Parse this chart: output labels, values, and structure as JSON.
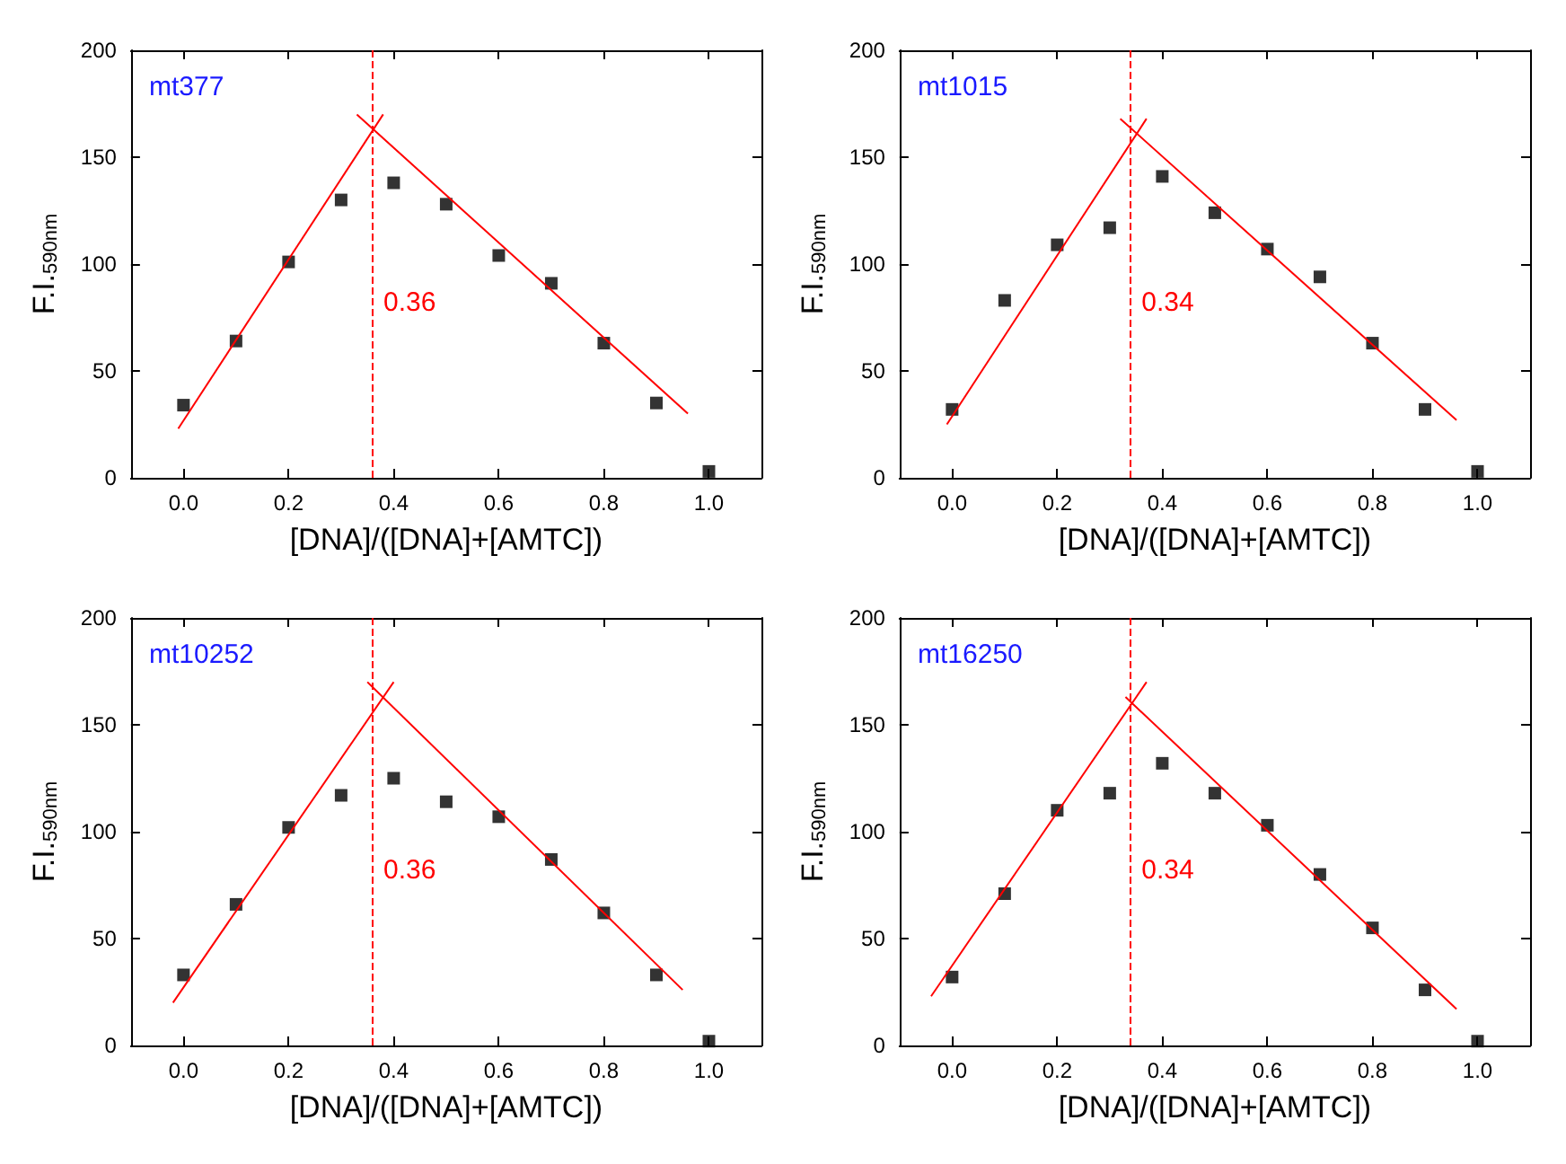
{
  "chart_data": [
    {
      "type": "scatter",
      "title": "mt377",
      "xlabel": "[DNA]/([DNA]+[AMTC])",
      "ylabel": "F.I.$_{590nm}$",
      "marker": "square",
      "grid": false,
      "xlim": [
        -0.1,
        1.1
      ],
      "xticks": [
        {
          "value": 0,
          "label": "0.0"
        },
        {
          "value": 0.2,
          "label": "0.2"
        },
        {
          "value": 0.4,
          "label": "0.4"
        },
        {
          "value": 0.6,
          "label": "0.6"
        },
        {
          "value": 0.8,
          "label": "0.8"
        },
        {
          "value": 1,
          "label": "1.0"
        }
      ],
      "ylim": [
        0,
        200
      ],
      "yticks": [
        0,
        50,
        100,
        150,
        200
      ],
      "x": [
        0,
        0.1,
        0.2,
        0.3,
        0.4,
        0.5,
        0.6,
        0.7,
        0.8,
        0.9,
        1.0
      ],
      "series": [
        {
          "color": "#000000",
          "values": [
            34,
            64,
            101,
            130,
            138,
            128,
            104,
            91,
            63,
            35,
            3
          ]
        },
        {
          "type": "line",
          "color": "#ff0000",
          "marker": "none",
          "x": [
            -0.01,
            0.38
          ],
          "values": [
            23,
            170
          ]
        },
        {
          "type": "line",
          "color": "#ff0000",
          "marker": "none",
          "x": [
            0.33,
            0.96
          ],
          "values": [
            170,
            30
          ]
        }
      ],
      "ref_lines": [
        {
          "axis": "x",
          "value": 0.36,
          "label": "0.36",
          "color": "#ff0000",
          "line_style": "dashed"
        }
      ]
    },
    {
      "type": "scatter",
      "title": "mt1015",
      "xlabel": "[DNA]/([DNA]+[AMTC])",
      "ylabel": "F.I.$_{590nm}$",
      "marker": "square",
      "grid": false,
      "xlim": [
        -0.1,
        1.1
      ],
      "xticks": [
        {
          "value": 0,
          "label": "0.0"
        },
        {
          "value": 0.2,
          "label": "0.2"
        },
        {
          "value": 0.4,
          "label": "0.4"
        },
        {
          "value": 0.6,
          "label": "0.6"
        },
        {
          "value": 0.8,
          "label": "0.8"
        },
        {
          "value": 1,
          "label": "1.0"
        }
      ],
      "ylim": [
        0,
        200
      ],
      "yticks": [
        0,
        50,
        100,
        150,
        200
      ],
      "x": [
        0,
        0.1,
        0.2,
        0.3,
        0.4,
        0.5,
        0.6,
        0.7,
        0.8,
        0.9,
        1.0
      ],
      "series": [
        {
          "color": "#000000",
          "values": [
            32,
            83,
            109,
            117,
            141,
            124,
            107,
            94,
            63,
            32,
            3
          ]
        },
        {
          "type": "line",
          "color": "#ff0000",
          "marker": "none",
          "x": [
            -0.01,
            0.37
          ],
          "values": [
            25,
            168
          ]
        },
        {
          "type": "line",
          "color": "#ff0000",
          "marker": "none",
          "x": [
            0.32,
            0.96
          ],
          "values": [
            168,
            27
          ]
        }
      ],
      "ref_lines": [
        {
          "axis": "x",
          "value": 0.34,
          "label": "0.34",
          "color": "#ff0000",
          "line_style": "dashed"
        }
      ]
    },
    {
      "type": "scatter",
      "title": "mt10252",
      "xlabel": "[DNA]/([DNA]+[AMTC])",
      "ylabel": "F.I.$_{590nm}$",
      "marker": "square",
      "grid": false,
      "xlim": [
        -0.1,
        1.1
      ],
      "xticks": [
        {
          "value": 0,
          "label": "0.0"
        },
        {
          "value": 0.2,
          "label": "0.2"
        },
        {
          "value": 0.4,
          "label": "0.4"
        },
        {
          "value": 0.6,
          "label": "0.6"
        },
        {
          "value": 0.8,
          "label": "0.8"
        },
        {
          "value": 1,
          "label": "1.0"
        }
      ],
      "ylim": [
        0,
        200
      ],
      "yticks": [
        0,
        50,
        100,
        150,
        200
      ],
      "x": [
        0,
        0.1,
        0.2,
        0.3,
        0.4,
        0.5,
        0.6,
        0.7,
        0.8,
        0.9,
        1.0
      ],
      "series": [
        {
          "color": "#000000",
          "values": [
            33,
            66,
            102,
            117,
            125,
            114,
            107,
            87,
            62,
            33,
            2
          ]
        },
        {
          "type": "line",
          "color": "#ff0000",
          "marker": "none",
          "x": [
            -0.02,
            0.4
          ],
          "values": [
            20,
            170
          ]
        },
        {
          "type": "line",
          "color": "#ff0000",
          "marker": "none",
          "x": [
            0.35,
            0.95
          ],
          "values": [
            170,
            26
          ]
        }
      ],
      "ref_lines": [
        {
          "axis": "x",
          "value": 0.36,
          "label": "0.36",
          "color": "#ff0000",
          "line_style": "dashed"
        }
      ]
    },
    {
      "type": "scatter",
      "title": "mt16250",
      "xlabel": "[DNA]/([DNA]+[AMTC])",
      "ylabel": "F.I.$_{590nm}$",
      "marker": "square",
      "grid": false,
      "xlim": [
        -0.1,
        1.1
      ],
      "xticks": [
        {
          "value": 0,
          "label": "0.0"
        },
        {
          "value": 0.2,
          "label": "0.2"
        },
        {
          "value": 0.4,
          "label": "0.4"
        },
        {
          "value": 0.6,
          "label": "0.6"
        },
        {
          "value": 0.8,
          "label": "0.8"
        },
        {
          "value": 1,
          "label": "1.0"
        }
      ],
      "ylim": [
        0,
        200
      ],
      "yticks": [
        0,
        50,
        100,
        150,
        200
      ],
      "x": [
        0,
        0.1,
        0.2,
        0.3,
        0.4,
        0.5,
        0.6,
        0.7,
        0.8,
        0.9,
        1.0
      ],
      "series": [
        {
          "color": "#000000",
          "values": [
            32,
            71,
            110,
            118,
            132,
            118,
            103,
            80,
            55,
            26,
            2
          ]
        },
        {
          "type": "line",
          "color": "#ff0000",
          "marker": "none",
          "x": [
            -0.04,
            0.37
          ],
          "values": [
            23,
            170
          ]
        },
        {
          "type": "line",
          "color": "#ff0000",
          "marker": "none",
          "x": [
            0.33,
            0.96
          ],
          "values": [
            163,
            17
          ]
        }
      ],
      "ref_lines": [
        {
          "axis": "x",
          "value": 0.34,
          "label": "0.34",
          "color": "#ff0000",
          "line_style": "dashed"
        }
      ]
    }
  ]
}
